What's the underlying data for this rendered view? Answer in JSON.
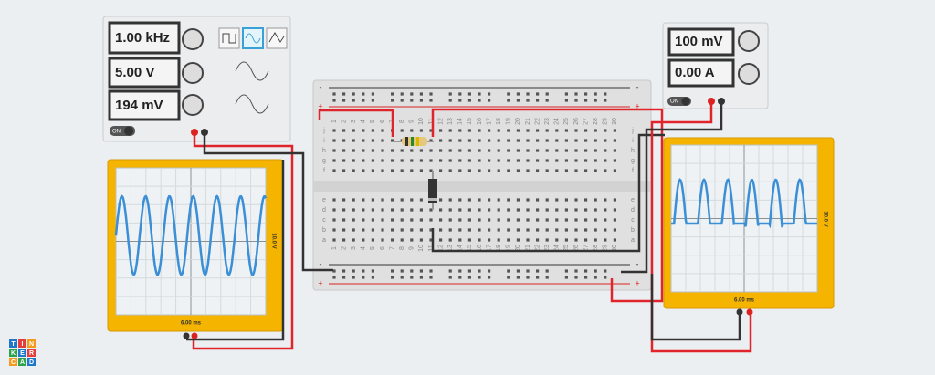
{
  "function_generator": {
    "frequency": "1.00 kHz",
    "amplitude": "5.00 V",
    "offset": "194 mV",
    "switch": "ON"
  },
  "power_supply": {
    "voltage": "100 mV",
    "current": "0.00 A",
    "switch": "ON"
  },
  "oscilloscope_left": {
    "time_label": "6.00 ms",
    "volt_label": "10.0 V"
  },
  "oscilloscope_right": {
    "time_label": "6.00 ms",
    "volt_label": "10.0 V"
  },
  "breadboard": {
    "columns": [
      1,
      2,
      3,
      4,
      5,
      6,
      7,
      8,
      9,
      10,
      11,
      12,
      13,
      14,
      15,
      16,
      17,
      18,
      19,
      20,
      21,
      22,
      23,
      24,
      25,
      26,
      27,
      28,
      29,
      30
    ],
    "rows_top": [
      "j",
      "i",
      "h",
      "g",
      "f"
    ],
    "rows_bottom": [
      "e",
      "d",
      "c",
      "b",
      "a"
    ],
    "plus": "+",
    "minus": "-"
  },
  "logo": [
    "T",
    "I",
    "N",
    "K",
    "E",
    "R",
    "C",
    "A",
    "D"
  ]
}
